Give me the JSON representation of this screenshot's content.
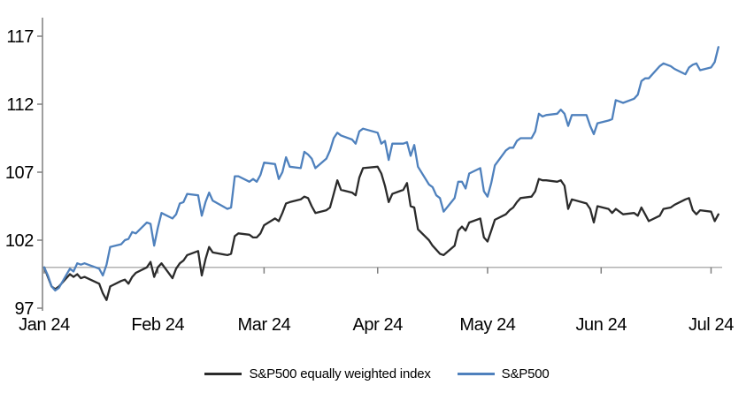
{
  "chart_data": {
    "type": "line",
    "title": "",
    "xlabel": "",
    "ylabel": "",
    "legend_position": "bottom",
    "grid": false,
    "y_axis": {
      "ticks": [
        97,
        102,
        107,
        112,
        117
      ],
      "range": [
        97,
        117
      ]
    },
    "x_axis": {
      "tick_labels": [
        "Jan 24",
        "Feb 24",
        "Mar 24",
        "Apr 24",
        "May 24",
        "Jun 24",
        "Jul 24"
      ],
      "tick_dates": [
        "2024-01-01",
        "2024-02-01",
        "2024-03-01",
        "2024-04-01",
        "2024-05-01",
        "2024-06-01",
        "2024-07-01"
      ]
    },
    "baseline": {
      "value": 100,
      "color": "#a9a9a9"
    },
    "dates": [
      "2024-01-01",
      "2024-01-02",
      "2024-01-03",
      "2024-01-04",
      "2024-01-05",
      "2024-01-08",
      "2024-01-09",
      "2024-01-10",
      "2024-01-11",
      "2024-01-12",
      "2024-01-16",
      "2024-01-17",
      "2024-01-18",
      "2024-01-19",
      "2024-01-22",
      "2024-01-23",
      "2024-01-24",
      "2024-01-25",
      "2024-01-26",
      "2024-01-29",
      "2024-01-30",
      "2024-01-31",
      "2024-02-01",
      "2024-02-02",
      "2024-02-05",
      "2024-02-06",
      "2024-02-07",
      "2024-02-08",
      "2024-02-09",
      "2024-02-12",
      "2024-02-13",
      "2024-02-14",
      "2024-02-15",
      "2024-02-16",
      "2024-02-20",
      "2024-02-21",
      "2024-02-22",
      "2024-02-23",
      "2024-02-26",
      "2024-02-27",
      "2024-02-28",
      "2024-02-29",
      "2024-03-01",
      "2024-03-04",
      "2024-03-05",
      "2024-03-06",
      "2024-03-07",
      "2024-03-08",
      "2024-03-11",
      "2024-03-12",
      "2024-03-13",
      "2024-03-14",
      "2024-03-15",
      "2024-03-18",
      "2024-03-19",
      "2024-03-20",
      "2024-03-21",
      "2024-03-22",
      "2024-03-25",
      "2024-03-26",
      "2024-03-27",
      "2024-03-28",
      "2024-04-01",
      "2024-04-02",
      "2024-04-03",
      "2024-04-04",
      "2024-04-05",
      "2024-04-08",
      "2024-04-09",
      "2024-04-10",
      "2024-04-11",
      "2024-04-12",
      "2024-04-15",
      "2024-04-16",
      "2024-04-17",
      "2024-04-18",
      "2024-04-19",
      "2024-04-22",
      "2024-04-23",
      "2024-04-24",
      "2024-04-25",
      "2024-04-26",
      "2024-04-29",
      "2024-04-30",
      "2024-05-01",
      "2024-05-02",
      "2024-05-03",
      "2024-05-06",
      "2024-05-07",
      "2024-05-08",
      "2024-05-09",
      "2024-05-10",
      "2024-05-13",
      "2024-05-14",
      "2024-05-15",
      "2024-05-16",
      "2024-05-17",
      "2024-05-20",
      "2024-05-21",
      "2024-05-22",
      "2024-05-23",
      "2024-05-24",
      "2024-05-28",
      "2024-05-29",
      "2024-05-30",
      "2024-05-31",
      "2024-06-03",
      "2024-06-04",
      "2024-06-05",
      "2024-06-06",
      "2024-06-07",
      "2024-06-10",
      "2024-06-11",
      "2024-06-12",
      "2024-06-13",
      "2024-06-14",
      "2024-06-17",
      "2024-06-18",
      "2024-06-20",
      "2024-06-21",
      "2024-06-24",
      "2024-06-25",
      "2024-06-26",
      "2024-06-27",
      "2024-06-28",
      "2024-07-01",
      "2024-07-02",
      "2024-07-03"
    ],
    "series": [
      {
        "id": "equal-weight",
        "name": "S&P500 equally weighted index",
        "color": "#2b2b2b",
        "values": [
          100.0,
          99.3,
          98.6,
          98.4,
          98.6,
          99.5,
          99.3,
          99.5,
          99.2,
          99.3,
          98.8,
          98.1,
          97.6,
          98.6,
          99.0,
          99.1,
          98.8,
          99.3,
          99.6,
          100.0,
          100.4,
          99.3,
          100.0,
          100.3,
          99.2,
          99.9,
          100.3,
          100.5,
          100.9,
          101.2,
          99.4,
          100.6,
          101.5,
          101.1,
          100.9,
          101.0,
          102.3,
          102.5,
          102.4,
          102.2,
          102.2,
          102.5,
          103.1,
          103.6,
          103.4,
          104.0,
          104.7,
          104.8,
          105.0,
          105.2,
          105.1,
          104.5,
          104.0,
          104.2,
          104.4,
          105.4,
          106.4,
          105.7,
          105.5,
          105.3,
          106.6,
          107.3,
          107.4,
          106.9,
          106.0,
          104.8,
          105.4,
          105.7,
          106.2,
          104.5,
          104.4,
          102.8,
          102.0,
          101.6,
          101.3,
          101.0,
          100.9,
          101.6,
          102.7,
          103.0,
          102.7,
          103.3,
          103.6,
          102.2,
          101.9,
          102.7,
          103.5,
          103.9,
          104.2,
          104.4,
          104.8,
          105.1,
          105.2,
          105.6,
          106.5,
          106.4,
          106.4,
          106.3,
          106.4,
          106.0,
          104.3,
          105.0,
          104.7,
          104.3,
          103.3,
          104.5,
          104.3,
          104.0,
          104.3,
          104.1,
          103.9,
          104.0,
          103.8,
          104.4,
          103.9,
          103.4,
          103.8,
          104.3,
          104.4,
          104.6,
          105.0,
          105.1,
          104.2,
          103.9,
          104.2,
          104.1,
          103.4,
          103.9
        ]
      },
      {
        "id": "sp500",
        "name": "S&P500",
        "color": "#4f81bd",
        "values": [
          100.0,
          99.4,
          98.6,
          98.3,
          98.5,
          99.9,
          99.7,
          100.3,
          100.2,
          100.3,
          99.9,
          99.4,
          100.2,
          101.5,
          101.7,
          102.0,
          102.1,
          102.6,
          102.5,
          103.3,
          103.2,
          101.6,
          102.9,
          104.0,
          103.6,
          103.9,
          104.7,
          104.8,
          105.4,
          105.3,
          103.8,
          104.8,
          105.5,
          104.9,
          104.3,
          104.4,
          106.7,
          106.7,
          106.3,
          106.5,
          106.3,
          106.8,
          107.7,
          107.6,
          106.5,
          107.0,
          108.1,
          107.4,
          107.3,
          108.5,
          108.3,
          108.0,
          107.3,
          108.0,
          108.6,
          109.5,
          109.9,
          109.7,
          109.4,
          109.1,
          110.0,
          110.2,
          109.9,
          109.1,
          109.3,
          107.9,
          109.1,
          109.1,
          109.2,
          108.2,
          109.0,
          107.4,
          106.1,
          105.9,
          105.3,
          105.1,
          104.1,
          105.1,
          106.3,
          106.3,
          105.8,
          106.9,
          107.3,
          105.6,
          105.2,
          106.2,
          107.5,
          108.6,
          108.8,
          108.8,
          109.3,
          109.5,
          109.5,
          110.0,
          111.3,
          111.1,
          111.2,
          111.3,
          111.6,
          111.3,
          110.4,
          111.2,
          111.2,
          110.4,
          109.8,
          110.6,
          110.8,
          110.9,
          112.3,
          112.2,
          112.1,
          112.4,
          112.7,
          113.7,
          113.9,
          113.9,
          114.8,
          115.0,
          114.8,
          114.6,
          114.2,
          114.7,
          114.9,
          115.0,
          114.5,
          114.7,
          115.1,
          116.2
        ]
      }
    ]
  },
  "colors": {
    "background": "#ffffff",
    "axis": "#7f7f7f",
    "baseline": "#a9a9a9",
    "text": "#000000",
    "sp500": "#4f81bd",
    "equal_weight": "#2b2b2b"
  }
}
